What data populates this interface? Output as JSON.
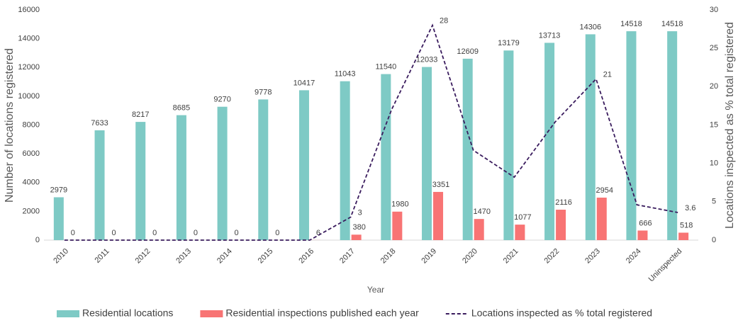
{
  "chart_data": {
    "type": "bar",
    "categories": [
      "2010",
      "2011",
      "2012",
      "2013",
      "2014",
      "2015",
      "2016",
      "2017",
      "2018",
      "2019",
      "2020",
      "2021",
      "2022",
      "2023",
      "2024",
      "Uninspected"
    ],
    "series": [
      {
        "name": "Residential locations",
        "color": "#7ecac5",
        "type": "bar",
        "values": [
          2979,
          7633,
          8217,
          8685,
          9270,
          9778,
          10417,
          11043,
          11540,
          12033,
          12609,
          13179,
          13713,
          14306,
          14518,
          14518
        ]
      },
      {
        "name": "Residential inspections published each year",
        "color": "#f87474",
        "type": "bar",
        "values": [
          0,
          0,
          0,
          0,
          0,
          0,
          6,
          380,
          1980,
          3351,
          1470,
          1077,
          2116,
          2954,
          666,
          518
        ]
      },
      {
        "name": "Locations inspected as % total registered",
        "color": "#3a1c5e",
        "type": "line",
        "axis": "y2",
        "values": [
          0,
          0,
          0,
          0,
          0,
          0,
          0,
          3,
          17,
          28,
          11.7,
          8.2,
          15.4,
          21,
          4.6,
          3.6
        ],
        "value_labels": [
          null,
          null,
          null,
          null,
          null,
          null,
          null,
          "3",
          null,
          "28",
          null,
          null,
          null,
          "21",
          null,
          "3.6"
        ]
      }
    ],
    "xlabel": "Year",
    "ylabel": "Number of locations registered",
    "y2label": "Locations inspected as % total registered",
    "ylim": [
      0,
      16000
    ],
    "yticks": [
      0,
      2000,
      4000,
      6000,
      8000,
      10000,
      12000,
      14000,
      16000
    ],
    "y2lim": [
      0,
      30
    ],
    "y2ticks": [
      0,
      5,
      10,
      15,
      20,
      25,
      30
    ],
    "legend": "bottom"
  }
}
